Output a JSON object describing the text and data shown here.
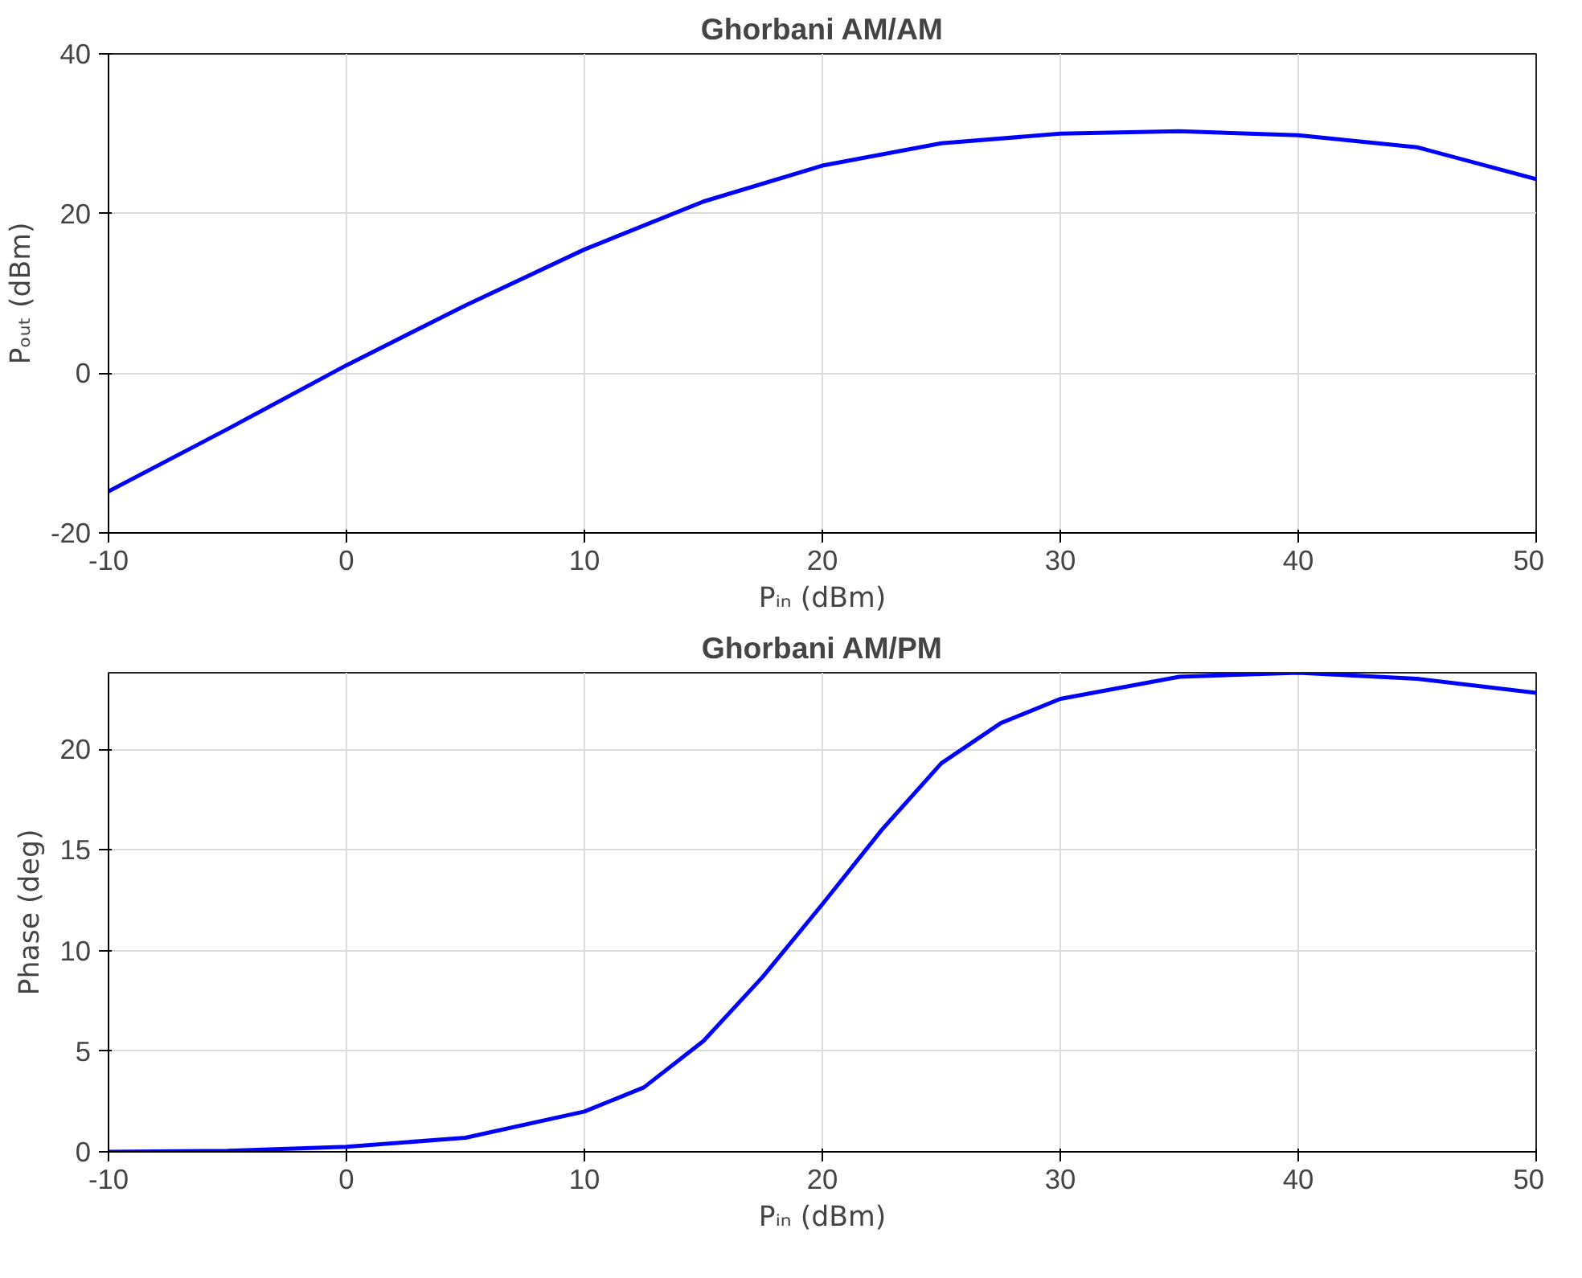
{
  "chart_data": [
    {
      "type": "line",
      "title": "Ghorbani AM/AM",
      "xlabel": "Pᵢₙ (dBm)",
      "ylabel": "Pₒᵤₜ (dBm)",
      "x": [
        -10,
        -5,
        0,
        5,
        10,
        15,
        20,
        25,
        30,
        35,
        40,
        45,
        50
      ],
      "series": [
        {
          "color": "#0000ff",
          "values": [
            -14.8,
            -7,
            1,
            8.5,
            15.5,
            21.5,
            26,
            28.8,
            30,
            30.3,
            29.8,
            28.3,
            24.3
          ]
        }
      ],
      "xlim": [
        -10,
        50
      ],
      "xticks": [
        -10,
        0,
        10,
        20,
        30,
        40,
        50
      ],
      "ylim": [
        -20,
        40
      ],
      "yticks": [
        -20,
        0,
        20,
        40
      ],
      "grid": true
    },
    {
      "type": "line",
      "title": "Ghorbani AM/PM",
      "xlabel": "Pᵢₙ (dBm)",
      "ylabel": "Phase (deg)",
      "x": [
        -10,
        -5,
        0,
        5,
        10,
        12.5,
        15,
        17.5,
        20,
        22.5,
        25,
        27.5,
        30,
        35,
        40,
        45,
        50
      ],
      "series": [
        {
          "color": "#0000ff",
          "values": [
            0,
            0.05,
            0.25,
            0.7,
            2,
            3.2,
            5.5,
            8.7,
            12.3,
            16,
            19.3,
            21.3,
            22.5,
            23.6,
            23.8,
            23.5,
            22.8
          ]
        }
      ],
      "xlim": [
        -10,
        50
      ],
      "xticks": [
        -10,
        0,
        10,
        20,
        30,
        40,
        50
      ],
      "ylim": [
        0,
        23.8
      ],
      "yticks": [
        0,
        5,
        10,
        15,
        20
      ],
      "grid": true
    }
  ]
}
